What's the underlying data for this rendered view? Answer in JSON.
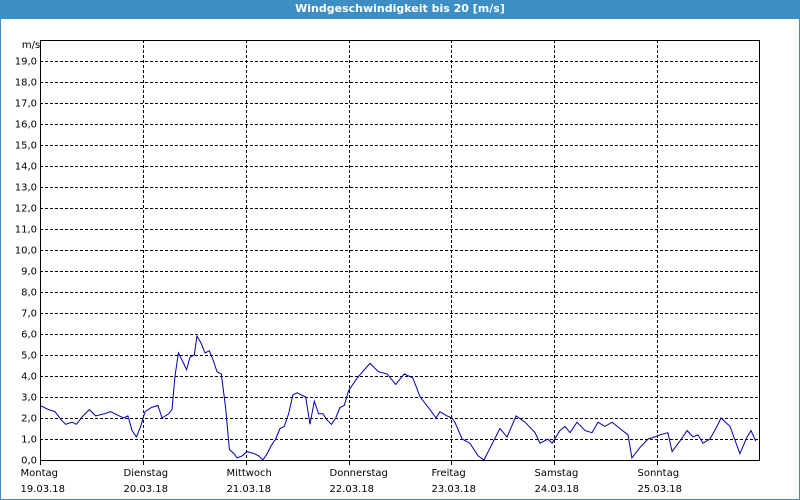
{
  "chart_data": {
    "type": "line",
    "title": "Windgeschwindigkeit bis 20 [m/s]",
    "y_label": "m/s",
    "xlim": [
      0,
      168
    ],
    "ylim": [
      0,
      20
    ],
    "grid": true,
    "log_scale": false,
    "xticks": [
      {
        "value": 0,
        "label": "Montag"
      },
      {
        "value": 24,
        "label": "Dienstag"
      },
      {
        "value": 48,
        "label": "Mittwoch"
      },
      {
        "value": 72,
        "label": "Donnerstag"
      },
      {
        "value": 96,
        "label": "Freitag"
      },
      {
        "value": 120,
        "label": "Samstag"
      },
      {
        "value": 144,
        "label": "Sonntag"
      }
    ],
    "xtick_dates": [
      "19.03.18",
      "20.03.18",
      "21.03.18",
      "22.03.18",
      "23.03.18",
      "24.03.18",
      "25.03.18"
    ],
    "yticks": [
      {
        "value": 0,
        "label": "0,0"
      },
      {
        "value": 1,
        "label": "1,0"
      },
      {
        "value": 2,
        "label": "2,0"
      },
      {
        "value": 3,
        "label": "3,0"
      },
      {
        "value": 4,
        "label": "4,0"
      },
      {
        "value": 5,
        "label": "5,0"
      },
      {
        "value": 6,
        "label": "6,0"
      },
      {
        "value": 7,
        "label": "7,0"
      },
      {
        "value": 8,
        "label": "8,0"
      },
      {
        "value": 9,
        "label": "9,0"
      },
      {
        "value": 10,
        "label": "10,0"
      },
      {
        "value": 11,
        "label": "11,0"
      },
      {
        "value": 12,
        "label": "12,0"
      },
      {
        "value": 13,
        "label": "13,0"
      },
      {
        "value": 14,
        "label": "14,0"
      },
      {
        "value": 15,
        "label": "15,0"
      },
      {
        "value": 16,
        "label": "16,0"
      },
      {
        "value": 17,
        "label": "17,0"
      },
      {
        "value": 18,
        "label": "18,0"
      },
      {
        "value": 19,
        "label": "19,0"
      }
    ],
    "series": [
      {
        "color": "#0000a8",
        "x": [
          0,
          2,
          3.5,
          5,
          6,
          7.5,
          8.5,
          10,
          11.5,
          13,
          15,
          16.5,
          18.5,
          19.5,
          20.5,
          21.5,
          22.5,
          23.5,
          24.5,
          26,
          27.5,
          28.5,
          30,
          30.8,
          31.5,
          32.3,
          33.5,
          34.2,
          35,
          36,
          36.6,
          37.5,
          38.5,
          39.5,
          40.5,
          41.3,
          42.3,
          43.3,
          44.2,
          45.3,
          46,
          47.2,
          48.3,
          50,
          51,
          52,
          53,
          54,
          55,
          56,
          57,
          58,
          59,
          60,
          61,
          62,
          63,
          64,
          65,
          66,
          67,
          68,
          69,
          70,
          71,
          72,
          74,
          77,
          79,
          81,
          83,
          85,
          87,
          88.7,
          91,
          92.4,
          93.3,
          95,
          96.1,
          96.8,
          98.5,
          100.3,
          102.2,
          103.6,
          107.3,
          109,
          111.1,
          113.2,
          115.5,
          116.7,
          118.5,
          119.5,
          121.3,
          122.5,
          123.7,
          125.3,
          127.2,
          128.8,
          130.2,
          131.8,
          133.5,
          135.3,
          137.2,
          138.1,
          140,
          141.9,
          143.5,
          144.7,
          146.5,
          147.5,
          149.3,
          151,
          152.4,
          153.5,
          154.7,
          156.3,
          157.7,
          158.9,
          161,
          163.3,
          165,
          165.9,
          167
        ],
        "values": [
          2.6,
          2.4,
          2.3,
          1.9,
          1.7,
          1.8,
          1.7,
          2.1,
          2.4,
          2.1,
          2.2,
          2.3,
          2.1,
          2.0,
          2.1,
          1.4,
          1.1,
          1.6,
          2.3,
          2.5,
          2.6,
          2.0,
          2.2,
          2.4,
          4.0,
          5.1,
          4.6,
          4.3,
          4.9,
          5.0,
          5.9,
          5.6,
          5.1,
          5.2,
          4.7,
          4.2,
          4.1,
          2.5,
          0.5,
          0.3,
          0.1,
          0.2,
          0.4,
          0.3,
          0.2,
          0.0,
          0.3,
          0.7,
          1.0,
          1.5,
          1.6,
          2.2,
          3.1,
          3.2,
          3.1,
          3.0,
          1.7,
          2.8,
          2.2,
          2.2,
          1.9,
          1.7,
          2.0,
          2.5,
          2.6,
          3.3,
          3.9,
          4.6,
          4.2,
          4.1,
          3.6,
          4.1,
          3.9,
          3.0,
          2.4,
          2.0,
          2.3,
          2.1,
          2.0,
          1.8,
          1.0,
          0.8,
          0.2,
          0.0,
          1.5,
          1.1,
          2.1,
          1.8,
          1.3,
          0.8,
          1.0,
          0.8,
          1.4,
          1.6,
          1.3,
          1.8,
          1.4,
          1.3,
          1.8,
          1.6,
          1.8,
          1.5,
          1.2,
          0.1,
          0.6,
          1.0,
          1.1,
          1.2,
          1.3,
          0.4,
          0.9,
          1.4,
          1.1,
          1.2,
          0.8,
          1.0,
          1.5,
          2.0,
          1.6,
          0.3,
          1.1,
          1.4,
          0.9
        ]
      }
    ]
  }
}
